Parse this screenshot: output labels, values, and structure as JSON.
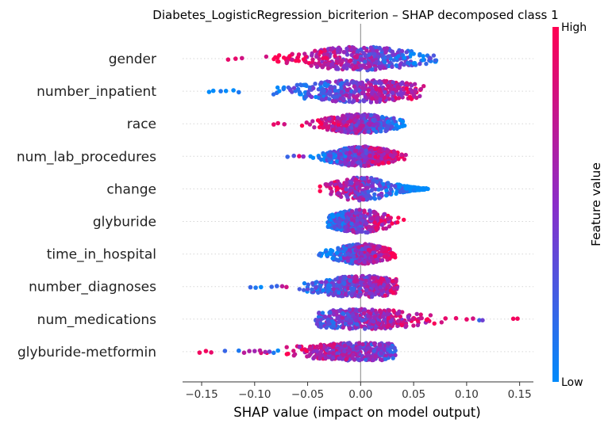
{
  "chart_data": {
    "type": "scatter",
    "subtype": "shap-beeswarm",
    "title": "Diabetes_LogisticRegression_bicriterion – SHAP decomposed class 1",
    "xlabel": "SHAP value (impact on model output)",
    "ylabel": "",
    "xlim": [
      -0.168,
      0.163
    ],
    "xticks": [
      -0.15,
      -0.1,
      -0.05,
      0.0,
      0.05,
      0.1,
      0.15
    ],
    "xtick_labels": [
      "−0.15",
      "−0.10",
      "−0.05",
      "0.00",
      "0.05",
      "0.10",
      "0.15"
    ],
    "grid": false,
    "colorbar": {
      "label": "Feature value",
      "high_label": "High",
      "low_label": "Low",
      "low_color": "#008bfb",
      "mid_color": "#8a2dc9",
      "high_color": "#ff0052"
    },
    "features": [
      {
        "name": "gender",
        "min": -0.125,
        "max": 0.072,
        "low_side": "positive",
        "spread": 1.0,
        "outliers": [
          [
            -0.125,
            0.9
          ],
          [
            -0.118,
            0.9
          ],
          [
            -0.112,
            0.8
          ]
        ]
      },
      {
        "name": "number_inpatient",
        "min": -0.143,
        "max": 0.06,
        "low_side": "negative",
        "spread": 0.95,
        "outliers": [
          [
            -0.143,
            0.0
          ],
          [
            -0.139,
            0.0
          ],
          [
            -0.132,
            0.1
          ],
          [
            -0.127,
            0.0
          ],
          [
            -0.12,
            0.0
          ],
          [
            -0.115,
            0.1
          ]
        ]
      },
      {
        "name": "race",
        "min": -0.082,
        "max": 0.043,
        "low_side": "positive",
        "spread": 0.8,
        "outliers": [
          [
            -0.082,
            0.9
          ],
          [
            -0.078,
            0.9
          ],
          [
            -0.072,
            0.8
          ]
        ]
      },
      {
        "name": "num_lab_procedures",
        "min": -0.069,
        "max": 0.043,
        "low_side": "negative",
        "spread": 0.85,
        "outliers": [
          [
            -0.069,
            0.2
          ],
          [
            -0.063,
            0.3
          ],
          [
            -0.058,
            0.9
          ],
          [
            -0.054,
            0.5
          ]
        ]
      },
      {
        "name": "change",
        "min": -0.04,
        "max": 0.064,
        "low_side": "positive",
        "spread": 1.0,
        "bimodal": true,
        "outliers": []
      },
      {
        "name": "glyburide",
        "min": -0.031,
        "max": 0.063,
        "low_side": "negative",
        "spread": 1.0,
        "bimodal": true,
        "outliers": []
      },
      {
        "name": "time_in_hospital",
        "min": -0.06,
        "max": 0.036,
        "low_side": "negative",
        "spread": 0.85,
        "outliers": []
      },
      {
        "name": "number_diagnoses",
        "min": -0.104,
        "max": 0.035,
        "low_side": "negative",
        "spread": 0.9,
        "outliers": [
          [
            -0.104,
            0.2
          ],
          [
            -0.099,
            0.1
          ],
          [
            -0.094,
            0.0
          ],
          [
            -0.084,
            0.2
          ],
          [
            -0.079,
            0.2
          ],
          [
            -0.074,
            0.7
          ],
          [
            -0.07,
            0.8
          ]
        ]
      },
      {
        "name": "num_medications",
        "min": -0.043,
        "max": 0.148,
        "low_side": "negative",
        "spread": 0.85,
        "outliers": [
          [
            0.08,
            0.9
          ],
          [
            0.09,
            0.9
          ],
          [
            0.1,
            0.9
          ],
          [
            0.106,
            0.8
          ],
          [
            0.112,
            0.2
          ],
          [
            0.115,
            0.4
          ],
          [
            0.144,
            0.95
          ],
          [
            0.148,
            0.95
          ]
        ]
      },
      {
        "name": "glyburide-metformin",
        "min": -0.152,
        "max": 0.033,
        "low_side": "positive",
        "spread": 0.75,
        "outliers": [
          [
            -0.152,
            0.95
          ],
          [
            -0.146,
            0.95
          ],
          [
            -0.141,
            0.9
          ],
          [
            -0.128,
            0.2
          ],
          [
            -0.115,
            0.1
          ],
          [
            -0.11,
            0.7
          ],
          [
            -0.105,
            0.65
          ],
          [
            -0.1,
            0.6
          ],
          [
            -0.095,
            0.7
          ],
          [
            -0.09,
            0.6
          ],
          [
            -0.086,
            0.4
          ],
          [
            -0.082,
            0.1
          ],
          [
            -0.078,
            0.0
          ]
        ]
      }
    ]
  }
}
